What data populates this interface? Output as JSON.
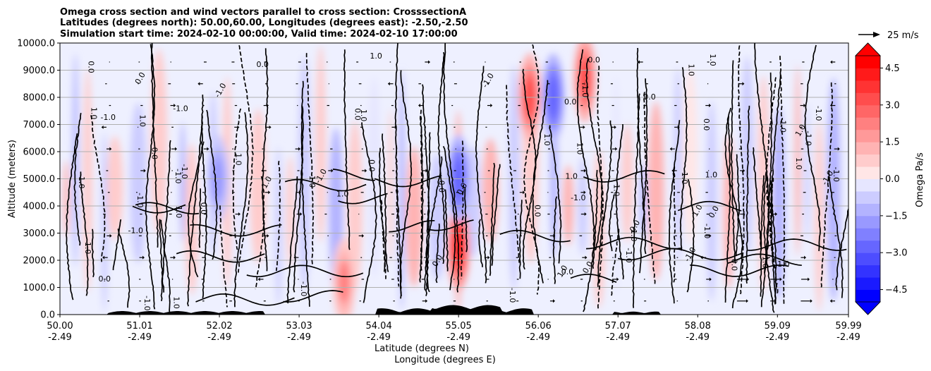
{
  "chart_data": {
    "type": "heatmap",
    "title_lines": [
      "Omega cross section and wind vectors parallel to cross section: CrosssectionA",
      "Latitudes (degrees north): 50.00,60.00, Longitudes (degrees east): -2.50,-2.50",
      "Simulation start time: 2024-02-10 00:00:00, Valid time: 2024-02-10 17:00:00"
    ],
    "ylabel": "Altitude (meters)",
    "xlabel_lines": [
      "Latitude (degrees N)",
      "Longitude (degrees E)"
    ],
    "xlim": [
      50.0,
      59.99
    ],
    "ylim": [
      0,
      10000
    ],
    "x_ticks": [
      {
        "lat": "50.00",
        "lon": "-2.49",
        "value": 50.0
      },
      {
        "lat": "51.01",
        "lon": "-2.49",
        "value": 51.01
      },
      {
        "lat": "52.02",
        "lon": "-2.49",
        "value": 52.02
      },
      {
        "lat": "53.03",
        "lon": "-2.49",
        "value": 53.03
      },
      {
        "lat": "54.04",
        "lon": "-2.49",
        "value": 54.04
      },
      {
        "lat": "55.05",
        "lon": "-2.49",
        "value": 55.05
      },
      {
        "lat": "56.06",
        "lon": "-2.49",
        "value": 56.06
      },
      {
        "lat": "57.07",
        "lon": "-2.49",
        "value": 57.07
      },
      {
        "lat": "58.08",
        "lon": "-2.49",
        "value": 58.08
      },
      {
        "lat": "59.09",
        "lon": "-2.49",
        "value": 59.09
      },
      {
        "lat": "59.99",
        "lon": "-2.49",
        "value": 59.99
      }
    ],
    "y_ticks": [
      {
        "label": "0.0",
        "value": 0
      },
      {
        "label": "1000.0",
        "value": 1000
      },
      {
        "label": "2000.0",
        "value": 2000
      },
      {
        "label": "3000.0",
        "value": 3000
      },
      {
        "label": "4000.0",
        "value": 4000
      },
      {
        "label": "5000.0",
        "value": 5000
      },
      {
        "label": "6000.0",
        "value": 6000
      },
      {
        "label": "7000.0",
        "value": 7000
      },
      {
        "label": "8000.0",
        "value": 8000
      },
      {
        "label": "9000.0",
        "value": 9000
      },
      {
        "label": "10000.0",
        "value": 10000
      }
    ],
    "grid": "horizontal",
    "colorbar": {
      "label": "Omega Pa/s",
      "range": [
        -5,
        5
      ],
      "levels": [
        -5.0,
        -4.5,
        -4.0,
        -3.5,
        -3.0,
        -2.5,
        -2.0,
        -1.5,
        -1.0,
        -0.5,
        0.0,
        0.5,
        1.0,
        1.5,
        2.0,
        2.5,
        3.0,
        3.5,
        4.0,
        4.5,
        5.0
      ],
      "extend": "both",
      "tick_labels": [
        {
          "label": "4.5",
          "value": 4.5
        },
        {
          "label": "3.0",
          "value": 3.0
        },
        {
          "label": "1.5",
          "value": 1.5
        },
        {
          "label": "0.0",
          "value": 0.0
        },
        {
          "label": "−1.5",
          "value": -1.5
        },
        {
          "label": "−3.0",
          "value": -3.0
        },
        {
          "label": "−4.5",
          "value": -4.5
        }
      ],
      "colors": [
        "#0000ff",
        "#1a1aff",
        "#3333ff",
        "#4d4dff",
        "#6666ff",
        "#8080ff",
        "#9999ff",
        "#b3b3ff",
        "#ccccff",
        "#e6e6ff",
        "#ffe6e6",
        "#ffcccc",
        "#ffb3b3",
        "#ff9999",
        "#ff8080",
        "#ff6666",
        "#ff4d4d",
        "#ff3333",
        "#ff1a1a",
        "#ff0000"
      ]
    },
    "quiver_key": {
      "label": "25 m/s",
      "speed": 25
    },
    "contour_levels": [
      -1.0,
      0.0,
      1.0
    ],
    "contour_label_texts": [
      "0.0",
      "1.0",
      "-1.0"
    ],
    "notable_features": [
      {
        "lat": 55.05,
        "alt": 2500,
        "omega": 4.0
      },
      {
        "lat": 55.05,
        "alt": 5000,
        "omega": -3.0
      },
      {
        "lat": 56.25,
        "alt": 8000,
        "omega": -3.0
      },
      {
        "lat": 55.95,
        "alt": 8000,
        "omega": 3.0
      },
      {
        "lat": 56.65,
        "alt": 8700,
        "omega": 3.0
      },
      {
        "lat": 53.6,
        "alt": 1200,
        "omega": 2.0
      },
      {
        "lat": 52.0,
        "alt": 5000,
        "omega": -2.0
      }
    ]
  }
}
